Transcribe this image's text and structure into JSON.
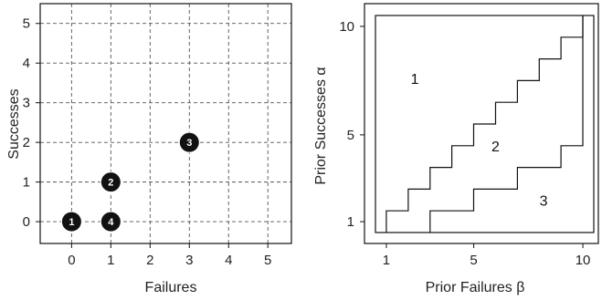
{
  "chart_data": [
    {
      "type": "scatter",
      "xlabel": "Failures",
      "ylabel": "Successes",
      "xlim": [
        -0.8,
        5.6
      ],
      "ylim": [
        -0.55,
        5.5
      ],
      "xticks": [
        "0",
        "1",
        "2",
        "3",
        "4",
        "5"
      ],
      "yticks": [
        "0",
        "1",
        "2",
        "3",
        "4",
        "5"
      ],
      "grid": true,
      "points": [
        {
          "x": 0,
          "y": 0,
          "label": "1"
        },
        {
          "x": 1,
          "y": 1,
          "label": "2"
        },
        {
          "x": 3,
          "y": 2,
          "label": "3"
        },
        {
          "x": 1,
          "y": 0,
          "label": "4"
        }
      ],
      "point_color": "#111111"
    },
    {
      "type": "line",
      "xlabel": "Prior Failures β",
      "ylabel": "Prior Successes α",
      "xlim": [
        0,
        11
      ],
      "ylim": [
        0.5,
        10.5
      ],
      "xticks": [
        "1",
        "5",
        "10"
      ],
      "yticks": [
        "1",
        "5",
        "10"
      ],
      "grid": false,
      "series": [
        {
          "values": [
            [
              1,
              0.5
            ],
            [
              1,
              1.5
            ],
            [
              2,
              1.5
            ],
            [
              2,
              2.5
            ],
            [
              3,
              2.5
            ],
            [
              3,
              3.5
            ],
            [
              4,
              3.5
            ],
            [
              4,
              4.5
            ],
            [
              5,
              4.5
            ],
            [
              5,
              5.5
            ],
            [
              6,
              5.5
            ],
            [
              6,
              6.5
            ],
            [
              7,
              6.5
            ],
            [
              7,
              7.5
            ],
            [
              8,
              7.5
            ],
            [
              8,
              8.5
            ],
            [
              9,
              8.5
            ],
            [
              9,
              9.5
            ],
            [
              10,
              9.5
            ],
            [
              10,
              10.5
            ]
          ]
        },
        {
          "values": [
            [
              3,
              0.5
            ],
            [
              3,
              1.5
            ],
            [
              5,
              1.5
            ],
            [
              5,
              2.5
            ],
            [
              7,
              2.5
            ],
            [
              7,
              3.5
            ],
            [
              9,
              3.5
            ],
            [
              9,
              4.5
            ],
            [
              10,
              4.5
            ],
            [
              10,
              10.5
            ]
          ]
        }
      ],
      "region_labels": [
        "1",
        "2",
        "3"
      ]
    }
  ]
}
